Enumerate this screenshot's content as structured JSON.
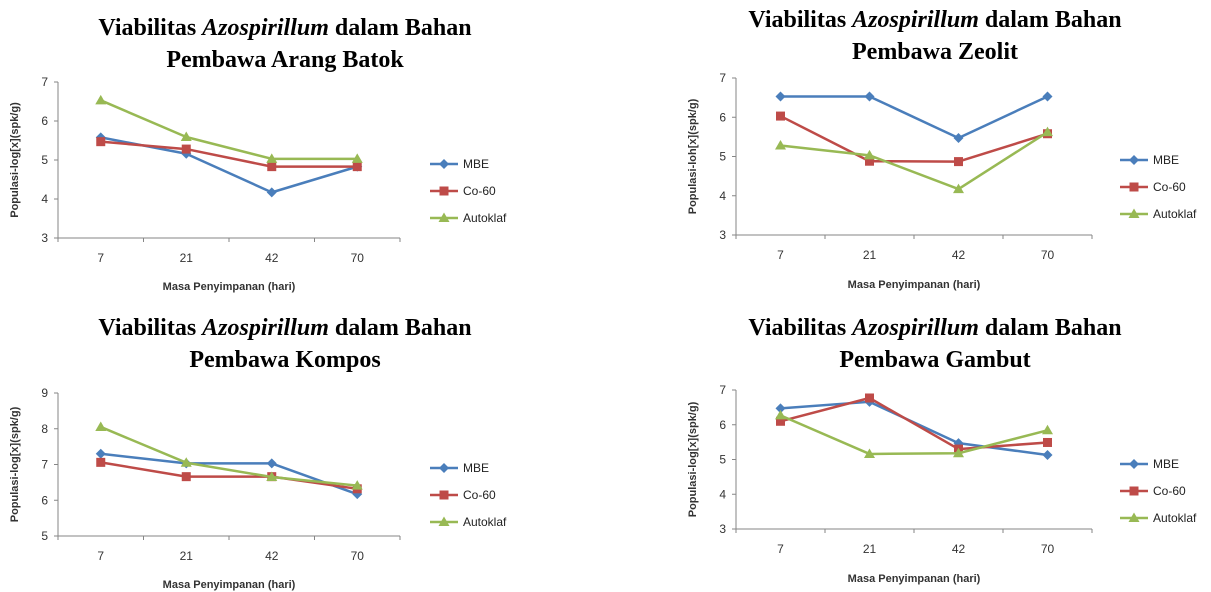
{
  "series_colors": {
    "MBE": "#4a7ebb",
    "Co-60": "#be4b48",
    "Autoklaf": "#98b954"
  },
  "chart_data": [
    {
      "type": "line",
      "title_prefix": "Viabilitas ",
      "title_italic": "Azospirillum",
      "title_suffix": " dalam Bahan",
      "title_line2": "Pembawa Arang Batok",
      "xlabel": "Masa Penyimpanan (hari)",
      "ylabel": "Populasi-log[x](spk/g)",
      "categories": [
        "7",
        "21",
        "42",
        "70"
      ],
      "ylim": [
        3,
        7
      ],
      "yticks": [
        "3",
        "4",
        "5",
        "6",
        "7"
      ],
      "legend": "right",
      "series": [
        {
          "name": "MBE",
          "values": [
            5.58,
            5.16,
            4.17,
            4.83
          ]
        },
        {
          "name": "Co-60",
          "values": [
            5.47,
            5.28,
            4.83,
            4.83
          ]
        },
        {
          "name": "Autoklaf",
          "values": [
            6.53,
            5.59,
            5.03,
            5.03
          ]
        }
      ]
    },
    {
      "type": "line",
      "title_prefix": "Viabilitas ",
      "title_italic": "Azospirillum",
      "title_suffix": " dalam Bahan",
      "title_line2": "Pembawa Zeolit",
      "xlabel": "Masa Penyimpanan (hari)",
      "ylabel": "Populasi-loh[x](spk/g)",
      "categories": [
        "7",
        "21",
        "42",
        "70"
      ],
      "ylim": [
        3,
        7
      ],
      "yticks": [
        "3",
        "4",
        "5",
        "6",
        "7"
      ],
      "legend": "right",
      "series": [
        {
          "name": "MBE",
          "values": [
            6.53,
            6.53,
            5.47,
            6.53
          ]
        },
        {
          "name": "Co-60",
          "values": [
            6.03,
            4.88,
            4.87,
            5.58
          ]
        },
        {
          "name": "Autoklaf",
          "values": [
            5.28,
            5.03,
            4.17,
            5.62
          ]
        }
      ]
    },
    {
      "type": "line",
      "title_prefix": "Viabilitas ",
      "title_italic": "Azospirillum",
      "title_suffix": " dalam Bahan",
      "title_line2": "Pembawa Kompos",
      "xlabel": "Masa Penyimpanan (hari)",
      "ylabel": "Populasi-log[x](spk/g)",
      "categories": [
        "7",
        "21",
        "42",
        "70"
      ],
      "ylim": [
        5,
        9
      ],
      "yticks": [
        "5",
        "6",
        "7",
        "8",
        "9"
      ],
      "legend": "right",
      "series": [
        {
          "name": "MBE",
          "values": [
            7.3,
            7.03,
            7.03,
            6.17
          ]
        },
        {
          "name": "Co-60",
          "values": [
            7.06,
            6.66,
            6.66,
            6.32
          ]
        },
        {
          "name": "Autoklaf",
          "values": [
            8.05,
            7.05,
            6.65,
            6.41
          ]
        }
      ]
    },
    {
      "type": "line",
      "title_prefix": "Viabilitas ",
      "title_italic": "Azospirillum",
      "title_suffix": " dalam Bahan",
      "title_line2": "Pembawa Gambut",
      "xlabel": "Masa Penyimpanan (hari)",
      "ylabel": "Populasi-log[x](spk/g)",
      "categories": [
        "7",
        "21",
        "42",
        "70"
      ],
      "ylim": [
        3,
        7
      ],
      "yticks": [
        "3",
        "4",
        "5",
        "6",
        "7"
      ],
      "legend": "right",
      "series": [
        {
          "name": "MBE",
          "values": [
            6.47,
            6.66,
            5.47,
            5.13
          ]
        },
        {
          "name": "Co-60",
          "values": [
            6.1,
            6.77,
            5.3,
            5.49
          ]
        },
        {
          "name": "Autoklaf",
          "values": [
            6.27,
            5.16,
            5.18,
            5.84
          ]
        }
      ]
    }
  ]
}
